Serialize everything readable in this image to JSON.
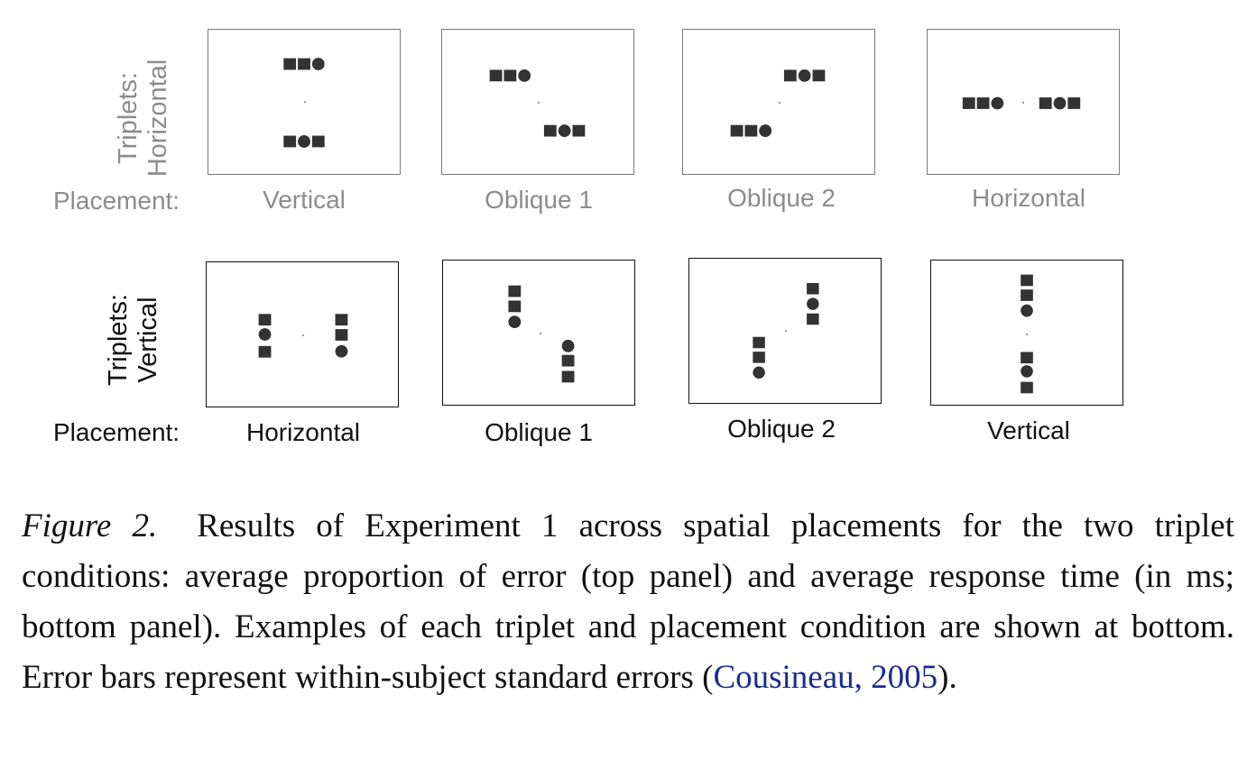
{
  "top_row": {
    "label_line1": "Triplets:",
    "label_line2": "Horizontal",
    "placement_label": "Placement:",
    "conditions": [
      "Vertical",
      "Oblique 1",
      "Oblique 2",
      "Horizontal"
    ]
  },
  "bottom_row": {
    "label_line1": "Triplets:",
    "label_line2": "Vertical",
    "placement_label": "Placement:",
    "conditions": [
      "Horizontal",
      "Oblique 1",
      "Oblique 2",
      "Vertical"
    ]
  },
  "caption": {
    "figure_number": "Figure 2.",
    "text_before_cite": "Results of Experiment 1 across spatial placements for the two triplet conditions: average proportion of error (top panel) and average response time (in ms; bottom panel). Examples of each triplet and place­ment condition are shown at bottom. Error bars represent within-subject standard errors (",
    "citation": "Cousineau, 2005",
    "text_after_cite": ")."
  },
  "colors": {
    "top_row_text": "#8c8c8c",
    "bottom_row_text": "#111111",
    "stimulus_fill": "#333333",
    "citation_link": "#1a2c8c"
  }
}
